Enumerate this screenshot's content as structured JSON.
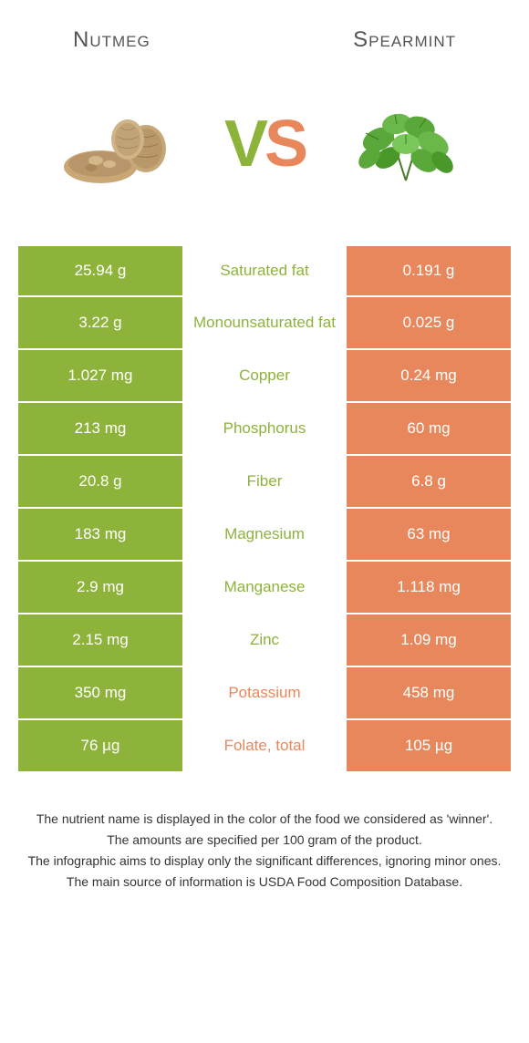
{
  "header": {
    "left": "Nutmeg",
    "right": "Spearmint"
  },
  "vs": {
    "v": "V",
    "s": "S"
  },
  "colors": {
    "left_bg": "#8eb33b",
    "right_bg": "#e8875b",
    "left_text": "#8eb33b",
    "right_text": "#e8875b",
    "vs_v": "#8eb33b",
    "vs_s": "#e8875b"
  },
  "rows": [
    {
      "left": "25.94 g",
      "label": "Saturated fat",
      "right": "0.191 g",
      "winner": "left"
    },
    {
      "left": "3.22 g",
      "label": "Monounsaturated fat",
      "right": "0.025 g",
      "winner": "left"
    },
    {
      "left": "1.027 mg",
      "label": "Copper",
      "right": "0.24 mg",
      "winner": "left"
    },
    {
      "left": "213 mg",
      "label": "Phosphorus",
      "right": "60 mg",
      "winner": "left"
    },
    {
      "left": "20.8 g",
      "label": "Fiber",
      "right": "6.8 g",
      "winner": "left"
    },
    {
      "left": "183 mg",
      "label": "Magnesium",
      "right": "63 mg",
      "winner": "left"
    },
    {
      "left": "2.9 mg",
      "label": "Manganese",
      "right": "1.118 mg",
      "winner": "left"
    },
    {
      "left": "2.15 mg",
      "label": "Zinc",
      "right": "1.09 mg",
      "winner": "left"
    },
    {
      "left": "350 mg",
      "label": "Potassium",
      "right": "458 mg",
      "winner": "right"
    },
    {
      "left": "76 µg",
      "label": "Folate, total",
      "right": "105 µg",
      "winner": "right"
    }
  ],
  "footnotes": [
    "The nutrient name is displayed in the color of the food we considered as 'winner'.",
    "The amounts are specified per 100 gram of the product.",
    "The infographic aims to display only the significant differences, ignoring minor ones.",
    "The main source of information is USDA Food Composition Database."
  ]
}
